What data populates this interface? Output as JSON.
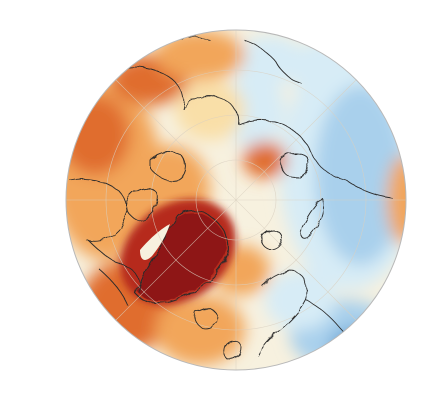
{
  "map": {
    "projection": "north-polar-stereographic",
    "colors": {
      "background": "#ffffff",
      "rim": "#b8b8b8",
      "coast": "#2a2a2a",
      "grid": "#d9d0c0",
      "warm_light": "#f9dfa8",
      "warm_mid": "#f2a65a",
      "warm_strong": "#e06d2e",
      "hot_dark": "#8e1414",
      "hot_deep": "#b62a1c",
      "neutral": "#f7f1df",
      "cool_light": "#d7ecf6",
      "cool_mid": "#a9d0ec",
      "cool_strong": "#6aa6d6"
    }
  }
}
